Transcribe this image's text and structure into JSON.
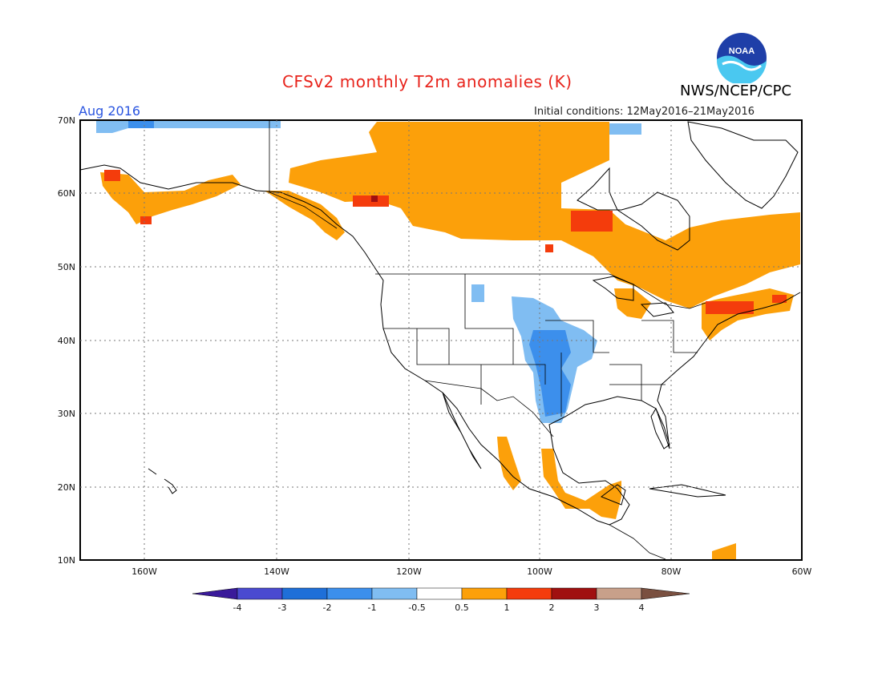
{
  "title": "CFSv2 monthly T2m anomalies (K)",
  "agency": "NWS/NCEP/CPC",
  "logo_text": "NOAA",
  "valid_month": "Aug 2016",
  "initial_conditions": "Initial conditions: 12May2016–21May2016",
  "lat_labels": [
    "70N",
    "60N",
    "50N",
    "40N",
    "30N",
    "20N",
    "10N"
  ],
  "lon_labels": [
    "160W",
    "140W",
    "120W",
    "100W",
    "80W",
    "60W"
  ],
  "colorbar": {
    "tick_labels": [
      "-4",
      "-3",
      "-2",
      "-1",
      "-0.5",
      "0.5",
      "1",
      "2",
      "3",
      "4"
    ],
    "colors": [
      "#3a1a9a",
      "#4a4ad0",
      "#1f6fd8",
      "#3c8fec",
      "#80bdf2",
      "#ffffff",
      "#fca00a",
      "#f43c0c",
      "#a01010",
      "#c8a08a",
      "#7a5040"
    ]
  },
  "anomaly_colors": {
    "warm_05_1": "#fca00a",
    "warm_1_2": "#f43c0c",
    "warm_2_3": "#a01010",
    "cool_05_1": "#80bdf2",
    "cool_1_2": "#3c8fec"
  }
}
